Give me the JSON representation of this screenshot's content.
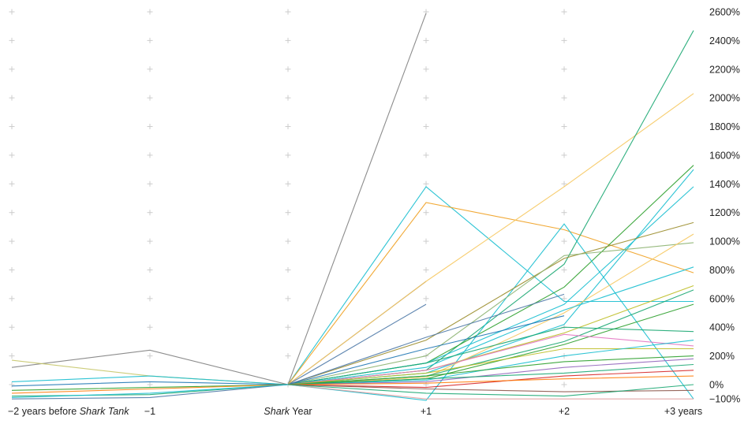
{
  "chart_data": {
    "type": "line",
    "x": [
      "−2 years before Shark Tank",
      "−1",
      "Shark Year",
      "+1",
      "+2",
      "+3 years"
    ],
    "x_tick_labels": [
      {
        "text": "−2 years before ",
        "italic": "Shark Tank",
        "after": ""
      },
      {
        "text": "−1",
        "italic": "",
        "after": ""
      },
      {
        "text": "",
        "italic": "Shark",
        "after": " Year"
      },
      {
        "text": "+1",
        "italic": "",
        "after": ""
      },
      {
        "text": "+2",
        "italic": "",
        "after": ""
      },
      {
        "text": "+3 years",
        "italic": "",
        "after": ""
      }
    ],
    "y_ticks": [
      2600,
      2400,
      2200,
      2000,
      1800,
      1600,
      1400,
      1200,
      1000,
      800,
      600,
      400,
      200,
      0,
      -100
    ],
    "y_tick_labels": [
      "2600%",
      "2400%",
      "2200%",
      "2000%",
      "1800%",
      "1600%",
      "1400%",
      "1200%",
      "1000%",
      "800%",
      "600%",
      "400%",
      "200%",
      "0%",
      "−100%"
    ],
    "ylim": [
      -100,
      2600
    ],
    "unit": "%",
    "grid": "plus markers",
    "legend": "none",
    "series": [
      {
        "values": [
          null,
          null,
          0,
          2590,
          null,
          null
        ],
        "color": "#7f7f7f"
      },
      {
        "values": [
          120,
          240,
          0,
          720,
          null,
          null
        ],
        "color": "#7f7f7f"
      },
      {
        "values": [
          null,
          null,
          0,
          1380,
          580,
          580
        ],
        "color": "#17becf"
      },
      {
        "values": [
          null,
          null,
          0,
          1270,
          1080,
          780
        ],
        "color": "#f0a020"
      },
      {
        "values": [
          null,
          null,
          0,
          720,
          1380,
          2030
        ],
        "color": "#f6c85f"
      },
      {
        "values": [
          null,
          null,
          0,
          100,
          840,
          2470
        ],
        "color": "#1aa772"
      },
      {
        "values": [
          null,
          null,
          0,
          150,
          680,
          1530
        ],
        "color": "#2ca02c"
      },
      {
        "values": [
          null,
          null,
          0,
          80,
          420,
          1500
        ],
        "color": "#17becf"
      },
      {
        "values": [
          null,
          null,
          0,
          -110,
          1120,
          -100
        ],
        "color": "#17becf"
      },
      {
        "values": [
          null,
          null,
          0,
          150,
          560,
          1380
        ],
        "color": "#17becf"
      },
      {
        "values": [
          null,
          null,
          0,
          560,
          null,
          null
        ],
        "color": "#4e79a7"
      },
      {
        "values": [
          null,
          null,
          0,
          310,
          880,
          1130
        ],
        "color": "#9a8c2a"
      },
      {
        "values": [
          null,
          null,
          0,
          200,
          900,
          990
        ],
        "color": "#8cb370"
      },
      {
        "values": [
          null,
          null,
          0,
          50,
          500,
          1050
        ],
        "color": "#f6c85f"
      },
      {
        "values": [
          null,
          null,
          0,
          120,
          520,
          820
        ],
        "color": "#17becf"
      },
      {
        "values": [
          null,
          null,
          0,
          100,
          360,
          690
        ],
        "color": "#bcbd22"
      },
      {
        "values": [
          null,
          null,
          0,
          60,
          300,
          660
        ],
        "color": "#1aa772"
      },
      {
        "values": [
          null,
          null,
          0,
          40,
          280,
          560
        ],
        "color": "#2ca02c"
      },
      {
        "values": [
          null,
          null,
          0,
          330,
          630,
          null
        ],
        "color": "#4e79a7"
      },
      {
        "values": [
          null,
          null,
          0,
          250,
          480,
          null
        ],
        "color": "#1f77b4"
      },
      {
        "values": [
          null,
          null,
          0,
          150,
          400,
          370
        ],
        "color": "#1aa772"
      },
      {
        "values": [
          null,
          null,
          0,
          100,
          350,
          270
        ],
        "color": "#e377c2"
      },
      {
        "values": [
          null,
          null,
          0,
          80,
          250,
          250
        ],
        "color": "#bcbd22"
      },
      {
        "values": [
          null,
          null,
          0,
          30,
          200,
          310
        ],
        "color": "#17becf"
      },
      {
        "values": [
          null,
          null,
          0,
          60,
          160,
          200
        ],
        "color": "#2ca02c"
      },
      {
        "values": [
          null,
          null,
          0,
          20,
          120,
          180
        ],
        "color": "#9467bd"
      },
      {
        "values": [
          null,
          null,
          0,
          40,
          80,
          140
        ],
        "color": "#1aa772"
      },
      {
        "values": [
          null,
          null,
          0,
          -20,
          60,
          100
        ],
        "color": "#d62728"
      },
      {
        "values": [
          null,
          null,
          0,
          10,
          40,
          60
        ],
        "color": "#ff7f0e"
      },
      {
        "values": [
          null,
          null,
          0,
          -30,
          -50,
          -40
        ],
        "color": "#8c564b"
      },
      {
        "values": [
          null,
          null,
          0,
          -100,
          -100,
          -100
        ],
        "color": "#e0a0a0"
      },
      {
        "values": [
          null,
          null,
          0,
          -60,
          -80,
          0
        ],
        "color": "#1aa772"
      },
      {
        "values": [
          170,
          60,
          0,
          null,
          null,
          null
        ],
        "color": "#c7c76a"
      },
      {
        "values": [
          20,
          60,
          0,
          null,
          null,
          null
        ],
        "color": "#17becf"
      },
      {
        "values": [
          -10,
          20,
          0,
          null,
          null,
          null
        ],
        "color": "#1f77b4"
      },
      {
        "values": [
          -40,
          -20,
          0,
          null,
          null,
          null
        ],
        "color": "#2ca02c"
      },
      {
        "values": [
          -60,
          -30,
          0,
          null,
          null,
          null
        ],
        "color": "#ff7f0e"
      },
      {
        "values": [
          -80,
          -70,
          0,
          null,
          null,
          null
        ],
        "color": "#1aa772"
      },
      {
        "values": [
          -100,
          -90,
          0,
          null,
          null,
          null
        ],
        "color": "#4e79a7"
      },
      {
        "values": [
          -90,
          -60,
          0,
          null,
          null,
          null
        ],
        "color": "#17becf"
      }
    ]
  }
}
